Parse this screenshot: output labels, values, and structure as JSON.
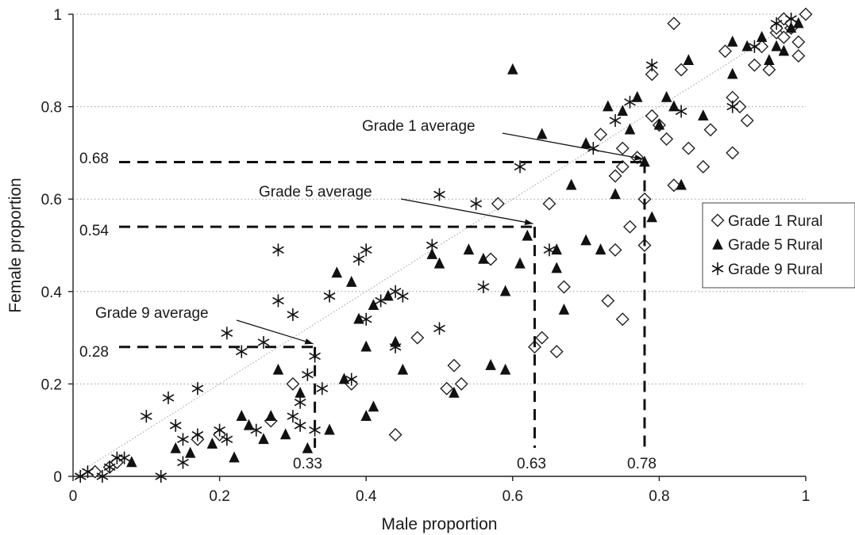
{
  "chart_data": {
    "type": "scatter",
    "xlabel": "Male proportion",
    "ylabel": "Female proportion",
    "xlim": [
      0,
      1
    ],
    "ylim": [
      0,
      1
    ],
    "x_ticks": [
      "0",
      "0.2",
      "0.4",
      "0.6",
      "0.8",
      "1"
    ],
    "y_ticks": [
      "0",
      "0.2",
      "0.4",
      "0.6",
      "0.8",
      "1"
    ],
    "grid": "horizontal dotted",
    "legend_position": "right",
    "reference_line": {
      "from": [
        0,
        0
      ],
      "to": [
        1,
        1
      ],
      "style": "dotted"
    },
    "series": [
      {
        "name": "Grade 1 Rural",
        "marker": "diamond-open",
        "points": [
          [
            0.03,
            0.01
          ],
          [
            0.05,
            0.02
          ],
          [
            0.06,
            0.03
          ],
          [
            0.17,
            0.08
          ],
          [
            0.2,
            0.09
          ],
          [
            0.27,
            0.12
          ],
          [
            0.3,
            0.2
          ],
          [
            0.38,
            0.2
          ],
          [
            0.44,
            0.09
          ],
          [
            0.47,
            0.3
          ],
          [
            0.51,
            0.19
          ],
          [
            0.52,
            0.24
          ],
          [
            0.53,
            0.2
          ],
          [
            0.57,
            0.47
          ],
          [
            0.58,
            0.59
          ],
          [
            0.63,
            0.28
          ],
          [
            0.64,
            0.3
          ],
          [
            0.65,
            0.59
          ],
          [
            0.66,
            0.27
          ],
          [
            0.67,
            0.41
          ],
          [
            0.72,
            0.74
          ],
          [
            0.73,
            0.38
          ],
          [
            0.74,
            0.49
          ],
          [
            0.74,
            0.65
          ],
          [
            0.75,
            0.34
          ],
          [
            0.75,
            0.67
          ],
          [
            0.75,
            0.71
          ],
          [
            0.76,
            0.54
          ],
          [
            0.77,
            0.69
          ],
          [
            0.78,
            0.6
          ],
          [
            0.78,
            0.5
          ],
          [
            0.79,
            0.87
          ],
          [
            0.79,
            0.78
          ],
          [
            0.8,
            0.76
          ],
          [
            0.81,
            0.73
          ],
          [
            0.82,
            0.98
          ],
          [
            0.83,
            0.88
          ],
          [
            0.84,
            0.71
          ],
          [
            0.86,
            0.67
          ],
          [
            0.87,
            0.75
          ],
          [
            0.89,
            0.92
          ],
          [
            0.9,
            0.82
          ],
          [
            0.9,
            0.7
          ],
          [
            0.91,
            0.8
          ],
          [
            0.92,
            0.77
          ],
          [
            0.93,
            0.89
          ],
          [
            0.94,
            0.93
          ],
          [
            0.95,
            0.88
          ],
          [
            0.96,
            0.96
          ],
          [
            0.97,
            0.99
          ],
          [
            0.98,
            0.97
          ],
          [
            0.99,
            0.94
          ],
          [
            0.99,
            0.91
          ],
          [
            1.0,
            1.0
          ],
          [
            0.98,
            0.98
          ],
          [
            0.96,
            0.97
          ],
          [
            0.97,
            0.95
          ],
          [
            0.82,
            0.63
          ]
        ]
      },
      {
        "name": "Grade 5 Rural",
        "marker": "triangle-filled",
        "points": [
          [
            0.08,
            0.03
          ],
          [
            0.14,
            0.06
          ],
          [
            0.16,
            0.05
          ],
          [
            0.19,
            0.07
          ],
          [
            0.22,
            0.04
          ],
          [
            0.23,
            0.13
          ],
          [
            0.24,
            0.11
          ],
          [
            0.26,
            0.08
          ],
          [
            0.27,
            0.13
          ],
          [
            0.28,
            0.23
          ],
          [
            0.29,
            0.09
          ],
          [
            0.31,
            0.18
          ],
          [
            0.32,
            0.06
          ],
          [
            0.35,
            0.1
          ],
          [
            0.36,
            0.44
          ],
          [
            0.37,
            0.21
          ],
          [
            0.38,
            0.42
          ],
          [
            0.39,
            0.34
          ],
          [
            0.4,
            0.13
          ],
          [
            0.4,
            0.28
          ],
          [
            0.41,
            0.15
          ],
          [
            0.41,
            0.37
          ],
          [
            0.43,
            0.39
          ],
          [
            0.44,
            0.29
          ],
          [
            0.45,
            0.23
          ],
          [
            0.49,
            0.48
          ],
          [
            0.5,
            0.46
          ],
          [
            0.52,
            0.18
          ],
          [
            0.54,
            0.49
          ],
          [
            0.56,
            0.47
          ],
          [
            0.57,
            0.24
          ],
          [
            0.59,
            0.23
          ],
          [
            0.59,
            0.4
          ],
          [
            0.6,
            0.88
          ],
          [
            0.61,
            0.46
          ],
          [
            0.62,
            0.52
          ],
          [
            0.64,
            0.74
          ],
          [
            0.66,
            0.45
          ],
          [
            0.66,
            0.49
          ],
          [
            0.67,
            0.36
          ],
          [
            0.68,
            0.63
          ],
          [
            0.7,
            0.72
          ],
          [
            0.7,
            0.51
          ],
          [
            0.72,
            0.49
          ],
          [
            0.73,
            0.8
          ],
          [
            0.74,
            0.61
          ],
          [
            0.75,
            0.79
          ],
          [
            0.76,
            0.75
          ],
          [
            0.77,
            0.82
          ],
          [
            0.78,
            0.68
          ],
          [
            0.79,
            0.56
          ],
          [
            0.8,
            0.76
          ],
          [
            0.81,
            0.82
          ],
          [
            0.82,
            0.8
          ],
          [
            0.83,
            0.63
          ],
          [
            0.84,
            0.9
          ],
          [
            0.86,
            0.78
          ],
          [
            0.9,
            0.87
          ],
          [
            0.9,
            0.94
          ],
          [
            0.92,
            0.93
          ],
          [
            0.94,
            0.95
          ],
          [
            0.95,
            0.9
          ],
          [
            0.96,
            0.93
          ],
          [
            0.98,
            0.97
          ],
          [
            0.99,
            0.98
          ],
          [
            0.97,
            0.92
          ]
        ]
      },
      {
        "name": "Grade 9 Rural",
        "marker": "asterisk",
        "points": [
          [
            0.01,
            0.0
          ],
          [
            0.02,
            0.01
          ],
          [
            0.04,
            0.0
          ],
          [
            0.05,
            0.02
          ],
          [
            0.06,
            0.04
          ],
          [
            0.07,
            0.04
          ],
          [
            0.1,
            0.13
          ],
          [
            0.12,
            0.0
          ],
          [
            0.13,
            0.17
          ],
          [
            0.15,
            0.03
          ],
          [
            0.15,
            0.08
          ],
          [
            0.17,
            0.09
          ],
          [
            0.17,
            0.19
          ],
          [
            0.2,
            0.1
          ],
          [
            0.21,
            0.08
          ],
          [
            0.21,
            0.31
          ],
          [
            0.23,
            0.27
          ],
          [
            0.25,
            0.1
          ],
          [
            0.26,
            0.29
          ],
          [
            0.28,
            0.38
          ],
          [
            0.28,
            0.49
          ],
          [
            0.3,
            0.35
          ],
          [
            0.31,
            0.11
          ],
          [
            0.31,
            0.16
          ],
          [
            0.32,
            0.22
          ],
          [
            0.33,
            0.1
          ],
          [
            0.33,
            0.26
          ],
          [
            0.34,
            0.19
          ],
          [
            0.35,
            0.39
          ],
          [
            0.38,
            0.21
          ],
          [
            0.39,
            0.47
          ],
          [
            0.4,
            0.34
          ],
          [
            0.4,
            0.49
          ],
          [
            0.42,
            0.38
          ],
          [
            0.44,
            0.28
          ],
          [
            0.44,
            0.4
          ],
          [
            0.45,
            0.39
          ],
          [
            0.49,
            0.5
          ],
          [
            0.5,
            0.61
          ],
          [
            0.5,
            0.32
          ],
          [
            0.55,
            0.59
          ],
          [
            0.56,
            0.41
          ],
          [
            0.61,
            0.67
          ],
          [
            0.65,
            0.49
          ],
          [
            0.71,
            0.71
          ],
          [
            0.74,
            0.77
          ],
          [
            0.76,
            0.81
          ],
          [
            0.79,
            0.89
          ],
          [
            0.83,
            0.79
          ],
          [
            0.9,
            0.8
          ],
          [
            0.93,
            0.93
          ],
          [
            0.96,
            0.98
          ],
          [
            0.98,
            0.99
          ],
          [
            0.3,
            0.13
          ],
          [
            0.14,
            0.11
          ]
        ]
      }
    ],
    "annotations": [
      {
        "text": "Grade 1 average",
        "x": 0.78,
        "y": 0.68,
        "x_label": "0.78",
        "y_label": "0.68"
      },
      {
        "text": "Grade 5 average",
        "x": 0.63,
        "y": 0.54,
        "x_label": "0.63",
        "y_label": "0.54"
      },
      {
        "text": "Grade 9 average",
        "x": 0.33,
        "y": 0.28,
        "x_label": "0.33",
        "y_label": "0.28"
      }
    ]
  }
}
